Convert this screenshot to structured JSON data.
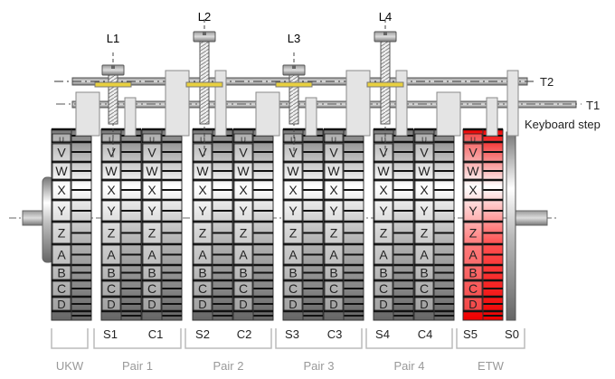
{
  "levers": [
    {
      "label": "L1"
    },
    {
      "label": "L2"
    },
    {
      "label": "L3"
    },
    {
      "label": "L4"
    }
  ],
  "rods": [
    {
      "label": "T2"
    },
    {
      "label": "T1"
    }
  ],
  "keyboard_step_label": "Keyboard step",
  "letters": [
    "U",
    "V",
    "W",
    "X",
    "Y",
    "Z",
    "A",
    "B",
    "C",
    "D"
  ],
  "wheels": [
    {
      "label": "",
      "color": "gray"
    },
    {
      "label": "S1",
      "color": "gray"
    },
    {
      "label": "C1",
      "color": "gray"
    },
    {
      "label": "S2",
      "color": "gray"
    },
    {
      "label": "C2",
      "color": "gray"
    },
    {
      "label": "S3",
      "color": "gray"
    },
    {
      "label": "C3",
      "color": "gray"
    },
    {
      "label": "S4",
      "color": "gray"
    },
    {
      "label": "C4",
      "color": "gray"
    },
    {
      "label": "S5",
      "color": "red"
    },
    {
      "label": "S0",
      "color": "gray"
    }
  ],
  "groups": [
    {
      "label": "UKW"
    },
    {
      "label": "Pair 1"
    },
    {
      "label": "Pair 2"
    },
    {
      "label": "Pair 3"
    },
    {
      "label": "Pair 4"
    },
    {
      "label": "ETW"
    }
  ],
  "colors": {
    "highlight": "#ff1a1a",
    "washer": "#e8d040",
    "group_label": "#999999"
  }
}
